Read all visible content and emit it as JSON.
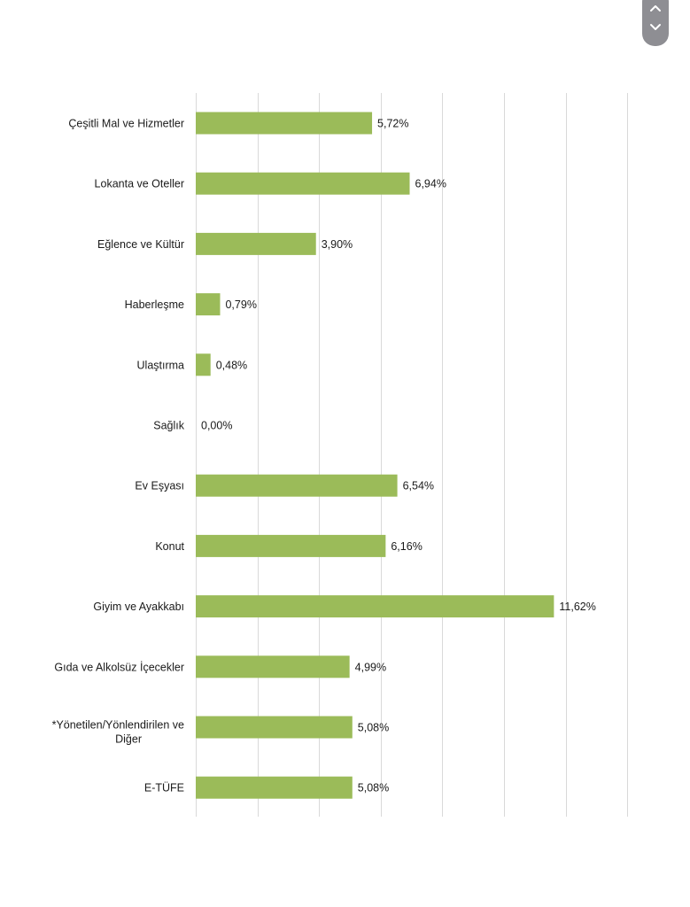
{
  "chart_data": {
    "type": "bar",
    "orientation": "horizontal",
    "categories": [
      "Çeşitli Mal ve Hizmetler",
      "Lokanta ve Oteller",
      "Eğlence ve Kültür",
      "Haberleşme",
      "Ulaştırma",
      "Sağlık",
      "Ev Eşyası",
      "Konut",
      "Giyim ve Ayakkabı",
      "Gıda ve Alkolsüz İçecekler",
      "*Yönetilen/Yönlendirilen ve Diğer",
      "E-TÜFE"
    ],
    "values": [
      5.72,
      6.94,
      3.9,
      0.79,
      0.48,
      0.0,
      6.54,
      6.16,
      11.62,
      4.99,
      5.08,
      5.08
    ],
    "data_labels": [
      "5,72%",
      "6,94%",
      "3,90%",
      "0,79%",
      "0,48%",
      "0,00%",
      "6,54%",
      "6,16%",
      "11,62%",
      "4,99%",
      "5,08%",
      "5,08%"
    ],
    "xlim": [
      0,
      14
    ],
    "grid": true,
    "grid_step": 2,
    "bar_color": "#9bbb59",
    "grid_color": "#d9d9d9",
    "title": "",
    "xlabel": "",
    "ylabel": ""
  },
  "scroll_widget": {
    "up_icon": "chevron-up-icon",
    "down_icon": "chevron-down-icon",
    "color": "#8e8e93"
  }
}
